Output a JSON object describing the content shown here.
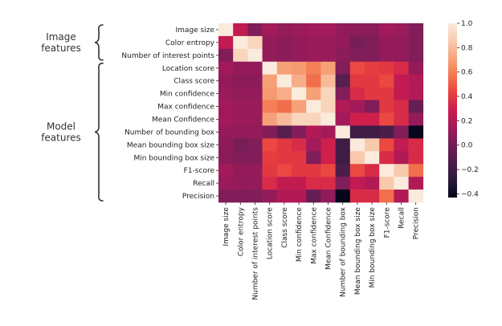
{
  "chart_data": {
    "type": "heatmap",
    "title": "",
    "labels": [
      "Image size",
      "Color entropy",
      "Number of interest points",
      "Location score",
      "Class score",
      "Min confidence",
      "Max confidence",
      "Mean Confidence",
      "Number of bounding box",
      "Mean bounding box size",
      "Min bounding box size",
      "F1-score",
      "Recall",
      "Precision"
    ],
    "groups": [
      {
        "name": "Image features",
        "lines": [
          "Image",
          "features"
        ],
        "start": 0,
        "end": 2
      },
      {
        "name": "Model features",
        "lines": [
          "Model",
          "features"
        ],
        "start": 3,
        "end": 13
      }
    ],
    "matrix": [
      [
        1.0,
        0.25,
        0.05,
        0.15,
        0.1,
        0.12,
        0.15,
        0.15,
        0.1,
        0.08,
        0.08,
        0.15,
        0.12,
        0.05
      ],
      [
        0.25,
        1.0,
        0.9,
        0.1,
        0.08,
        0.1,
        0.12,
        0.12,
        0.1,
        0.02,
        0.05,
        0.1,
        0.1,
        0.05
      ],
      [
        0.05,
        0.9,
        1.0,
        0.1,
        0.08,
        0.1,
        0.12,
        0.12,
        0.08,
        0.05,
        0.05,
        0.1,
        0.1,
        0.05
      ],
      [
        0.15,
        0.1,
        0.1,
        1.0,
        0.7,
        0.68,
        0.6,
        0.7,
        0.05,
        0.45,
        0.42,
        0.4,
        0.35,
        0.1
      ],
      [
        0.1,
        0.08,
        0.08,
        0.7,
        1.0,
        0.75,
        0.55,
        0.8,
        -0.1,
        0.4,
        0.4,
        0.45,
        0.25,
        0.2
      ],
      [
        0.12,
        0.1,
        0.1,
        0.68,
        0.75,
        1.0,
        0.7,
        0.9,
        0.05,
        0.35,
        0.4,
        0.4,
        0.25,
        0.2
      ],
      [
        0.15,
        0.12,
        0.12,
        0.6,
        0.55,
        0.7,
        1.0,
        0.9,
        0.2,
        0.15,
        0.05,
        0.4,
        0.35,
        -0.05
      ],
      [
        0.15,
        0.12,
        0.12,
        0.7,
        0.8,
        0.9,
        0.9,
        1.0,
        0.15,
        0.3,
        0.3,
        0.45,
        0.35,
        0.1
      ],
      [
        0.1,
        0.1,
        0.1,
        0.05,
        -0.1,
        0.05,
        0.2,
        0.15,
        1.0,
        -0.2,
        -0.2,
        -0.15,
        0.05,
        -0.42
      ],
      [
        0.08,
        0.02,
        0.05,
        0.45,
        0.4,
        0.35,
        0.15,
        0.3,
        -0.2,
        1.0,
        0.85,
        0.45,
        0.25,
        0.35
      ],
      [
        0.08,
        0.05,
        0.05,
        0.42,
        0.4,
        0.4,
        0.05,
        0.3,
        -0.2,
        0.85,
        1.0,
        0.35,
        0.2,
        0.35
      ],
      [
        0.15,
        0.1,
        0.1,
        0.4,
        0.45,
        0.4,
        0.4,
        0.45,
        -0.15,
        0.45,
        0.35,
        1.0,
        0.85,
        0.55
      ],
      [
        0.12,
        0.1,
        0.1,
        0.35,
        0.25,
        0.25,
        0.35,
        0.35,
        0.05,
        0.25,
        0.2,
        0.85,
        1.0,
        0.2
      ],
      [
        0.05,
        0.05,
        0.05,
        0.1,
        0.2,
        0.2,
        -0.05,
        0.1,
        -0.42,
        0.35,
        0.35,
        0.55,
        0.2,
        1.0
      ]
    ],
    "colorbar": {
      "min": -0.43,
      "max": 1.0,
      "ticks": [
        1.0,
        0.8,
        0.6,
        0.4,
        0.2,
        0.0,
        -0.2,
        -0.4
      ],
      "tick_labels": [
        "1.0",
        "0.8",
        "0.6",
        "0.4",
        "0.2",
        "0.0",
        "−0.2",
        "−0.4"
      ],
      "colormap": "rocket",
      "stops": [
        "#03051a",
        "#2b1b3a",
        "#4c1d4b",
        "#701f57",
        "#a11a5b",
        "#cb1b4f",
        "#e83f3f",
        "#f3774e",
        "#f6a47b",
        "#f9cbae",
        "#faebdd"
      ]
    }
  }
}
